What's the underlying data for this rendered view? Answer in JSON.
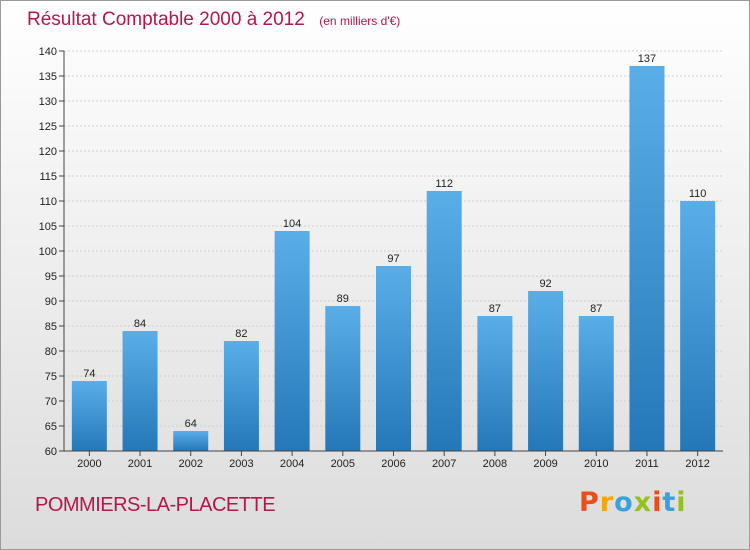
{
  "header": {
    "title": "Résultat Comptable 2000 à 2012",
    "subtitle": "(en milliers d'€)"
  },
  "footer": {
    "place": "POMMIERS-LA-PLACETTE",
    "brand": "Proxiti",
    "brand_colors": [
      "#e94e1b",
      "#f7a600",
      "#3ca0d9",
      "#95c11f",
      "#e94e1b",
      "#3ca0d9",
      "#95c11f"
    ]
  },
  "colors": {
    "bar_top": "#5aaee8",
    "bar_bottom": "#2478b8",
    "title": "#b5174d",
    "grid": "#cfcfcf"
  },
  "chart_data": {
    "type": "bar",
    "title": "Résultat Comptable 2000 à 2012",
    "subtitle": "(en milliers d'€)",
    "categories": [
      "2000",
      "2001",
      "2002",
      "2003",
      "2004",
      "2005",
      "2006",
      "2007",
      "2008",
      "2009",
      "2010",
      "2011",
      "2012"
    ],
    "values": [
      74,
      84,
      64,
      82,
      104,
      89,
      97,
      112,
      87,
      92,
      87,
      137,
      110
    ],
    "ylim": [
      60,
      140
    ],
    "yticks": [
      60,
      65,
      70,
      75,
      80,
      85,
      90,
      95,
      100,
      105,
      110,
      115,
      120,
      125,
      130,
      135,
      140
    ],
    "grid": true,
    "data_labels": true
  }
}
